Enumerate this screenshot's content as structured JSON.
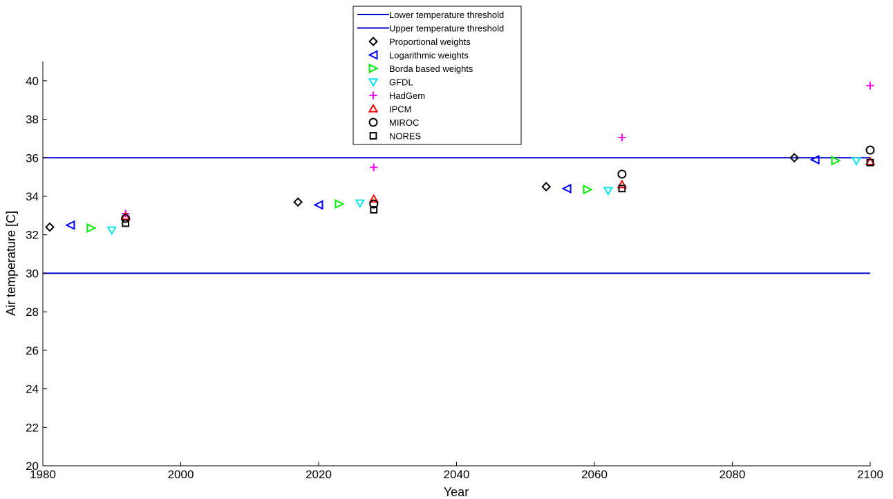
{
  "chart_data": {
    "type": "scatter",
    "xlabel": "Year",
    "ylabel": "Air temperature [C]",
    "xlim": [
      1980,
      2100
    ],
    "ylim": [
      20,
      41
    ],
    "xticks": [
      1980,
      2000,
      2020,
      2040,
      2060,
      2080,
      2100
    ],
    "yticks": [
      20,
      22,
      24,
      26,
      28,
      30,
      32,
      34,
      36,
      38,
      40
    ],
    "grid": false,
    "legend_position": "top-center",
    "thresholds": [
      {
        "name": "Lower temperature threshold",
        "value": 30,
        "x": [
          1980,
          2100
        ],
        "color": "#0000cc"
      },
      {
        "name": "Upper temperature threshold",
        "value": 36,
        "x": [
          1980,
          2100
        ],
        "color": "#0000cc"
      }
    ],
    "series": [
      {
        "name": "Proportional weights",
        "marker": "diamond",
        "color": "#000000",
        "x": [
          1981,
          2017,
          2053,
          2089
        ],
        "y": [
          32.4,
          33.7,
          34.5,
          36.0
        ]
      },
      {
        "name": "Logarithmic weights",
        "marker": "triangle-left",
        "color": "#0000ff",
        "x": [
          1984,
          2020,
          2056,
          2092
        ],
        "y": [
          32.5,
          33.55,
          34.4,
          35.9
        ]
      },
      {
        "name": "Borda based weights",
        "marker": "triangle-right",
        "color": "#00ee00",
        "x": [
          1987,
          2023,
          2059,
          2095
        ],
        "y": [
          32.35,
          33.6,
          34.35,
          35.85
        ]
      },
      {
        "name": "GFDL",
        "marker": "triangle-down",
        "color": "#00e5ee",
        "x": [
          1990,
          2026,
          2062,
          2098
        ],
        "y": [
          32.25,
          33.65,
          34.3,
          35.85
        ]
      },
      {
        "name": "HadGem",
        "marker": "plus",
        "color": "#ff00ff",
        "x": [
          1992,
          2028,
          2064,
          2100
        ],
        "y": [
          33.1,
          35.5,
          37.05,
          39.75
        ]
      },
      {
        "name": "IPCM",
        "marker": "triangle-up",
        "color": "#ff0000",
        "x": [
          1992,
          2028,
          2064,
          2100
        ],
        "y": [
          32.95,
          33.85,
          34.6,
          35.8
        ]
      },
      {
        "name": "MIROC",
        "marker": "circle",
        "color": "#000000",
        "x": [
          1992,
          2028,
          2064,
          2100
        ],
        "y": [
          32.85,
          33.6,
          35.15,
          36.4
        ]
      },
      {
        "name": "NORES",
        "marker": "square",
        "color": "#000000",
        "x": [
          1992,
          2028,
          2064,
          2100
        ],
        "y": [
          32.6,
          33.3,
          34.4,
          35.75
        ]
      }
    ]
  }
}
